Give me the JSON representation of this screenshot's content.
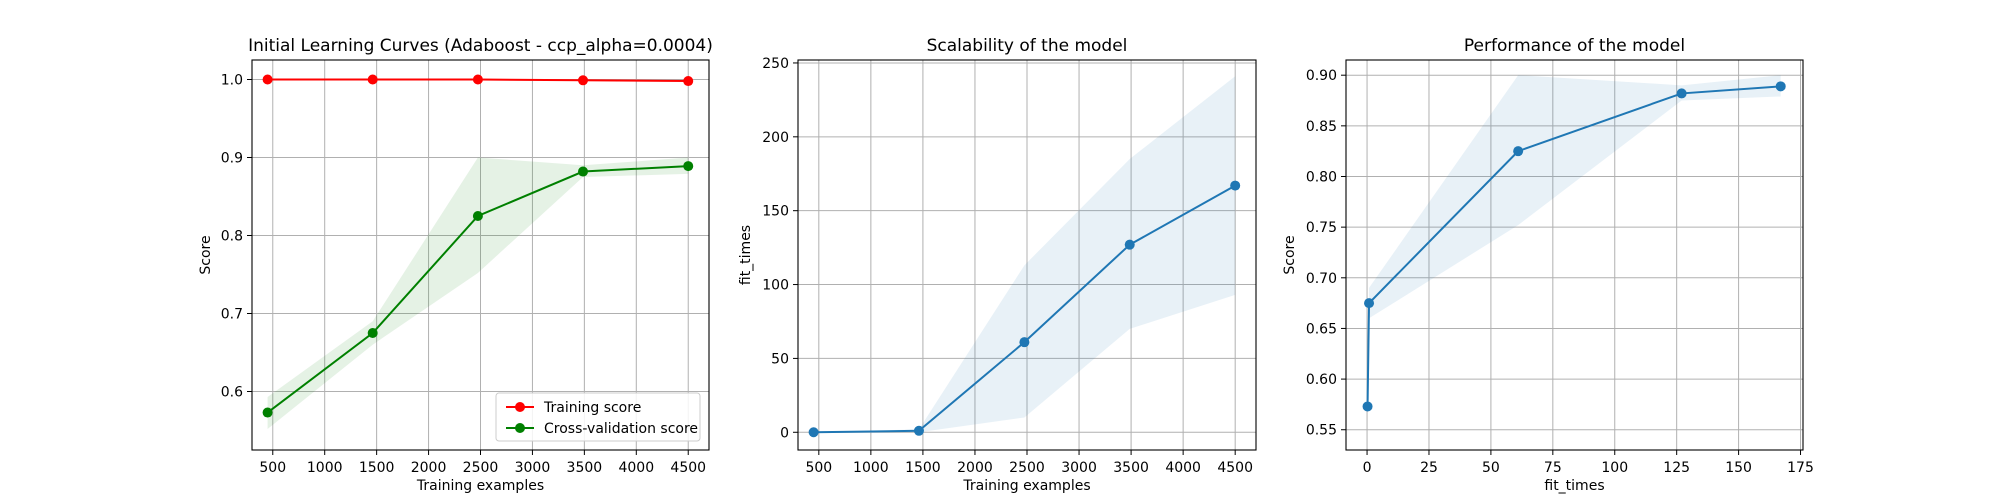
{
  "chart_data": [
    {
      "type": "line",
      "title": "Initial Learning Curves (Adaboost - ccp_alpha=0.0004)",
      "xlabel": "Training examples",
      "ylabel": "Score",
      "xlim": [
        300,
        4700
      ],
      "ylim": [
        0.525,
        1.025
      ],
      "xticks": [
        500,
        1000,
        1500,
        2000,
        2500,
        3000,
        3500,
        4000,
        4500
      ],
      "xtick_labels": [
        "500",
        "1000",
        "1500",
        "2000",
        "2500",
        "3000",
        "3500",
        "4000",
        "4500"
      ],
      "yticks": [
        0.6,
        0.7,
        0.8,
        0.9,
        1.0
      ],
      "ytick_labels": [
        "0.6",
        "0.7",
        "0.8",
        "0.9",
        "1.0"
      ],
      "grid": true,
      "legend_position": "lower-right",
      "series": [
        {
          "name": "Training score",
          "color": "#ff0000",
          "x": [
            450,
            1462,
            2475,
            3487,
            4500
          ],
          "y": [
            1.0,
            1.0,
            1.0,
            0.999,
            0.998
          ],
          "band_lower": [
            1.0,
            0.999,
            0.999,
            0.998,
            0.997
          ],
          "band_upper": [
            1.0,
            1.0,
            1.0,
            1.0,
            0.999
          ]
        },
        {
          "name": "Cross-validation score",
          "color": "#008000",
          "x": [
            450,
            1462,
            2475,
            3487,
            4500
          ],
          "y": [
            0.573,
            0.675,
            0.825,
            0.882,
            0.889
          ],
          "band_lower": [
            0.552,
            0.66,
            0.752,
            0.875,
            0.879
          ],
          "band_upper": [
            0.593,
            0.69,
            0.9,
            0.89,
            0.9
          ]
        }
      ]
    },
    {
      "type": "line",
      "title": "Scalability of the model",
      "xlabel": "Training examples",
      "ylabel": "fit_times",
      "xlim": [
        300,
        4700
      ],
      "ylim": [
        -12,
        252
      ],
      "xticks": [
        500,
        1000,
        1500,
        2000,
        2500,
        3000,
        3500,
        4000,
        4500
      ],
      "xtick_labels": [
        "500",
        "1000",
        "1500",
        "2000",
        "2500",
        "3000",
        "3500",
        "4000",
        "4500"
      ],
      "yticks": [
        0,
        50,
        100,
        150,
        200,
        250
      ],
      "ytick_labels": [
        "0",
        "50",
        "100",
        "150",
        "200",
        "250"
      ],
      "grid": true,
      "series": [
        {
          "color": "#1f77b4",
          "x": [
            450,
            1462,
            2475,
            3487,
            4500
          ],
          "y": [
            0,
            1,
            61,
            127,
            167
          ],
          "band_lower": [
            0,
            0,
            10,
            70,
            93
          ],
          "band_upper": [
            0,
            2,
            113,
            185,
            241
          ]
        }
      ]
    },
    {
      "type": "line",
      "title": "Performance of the model",
      "xlabel": "fit_times",
      "ylabel": "Score",
      "xlim": [
        -8.5,
        176
      ],
      "ylim": [
        0.53,
        0.915
      ],
      "xticks": [
        0,
        25,
        50,
        75,
        100,
        125,
        150,
        175
      ],
      "xtick_labels": [
        "0",
        "25",
        "50",
        "75",
        "100",
        "125",
        "150",
        "175"
      ],
      "yticks": [
        0.55,
        0.6,
        0.65,
        0.7,
        0.75,
        0.8,
        0.85,
        0.9
      ],
      "ytick_labels": [
        "0.55",
        "0.60",
        "0.65",
        "0.70",
        "0.75",
        "0.80",
        "0.85",
        "0.90"
      ],
      "grid": true,
      "series": [
        {
          "color": "#1f77b4",
          "x": [
            0.2,
            0.8,
            61,
            127,
            167
          ],
          "y": [
            0.573,
            0.675,
            0.825,
            0.882,
            0.889
          ],
          "band_lower": [
            0.573,
            0.66,
            0.752,
            0.875,
            0.879
          ],
          "band_upper": [
            0.573,
            0.69,
            0.9,
            0.89,
            0.9
          ]
        }
      ]
    }
  ]
}
